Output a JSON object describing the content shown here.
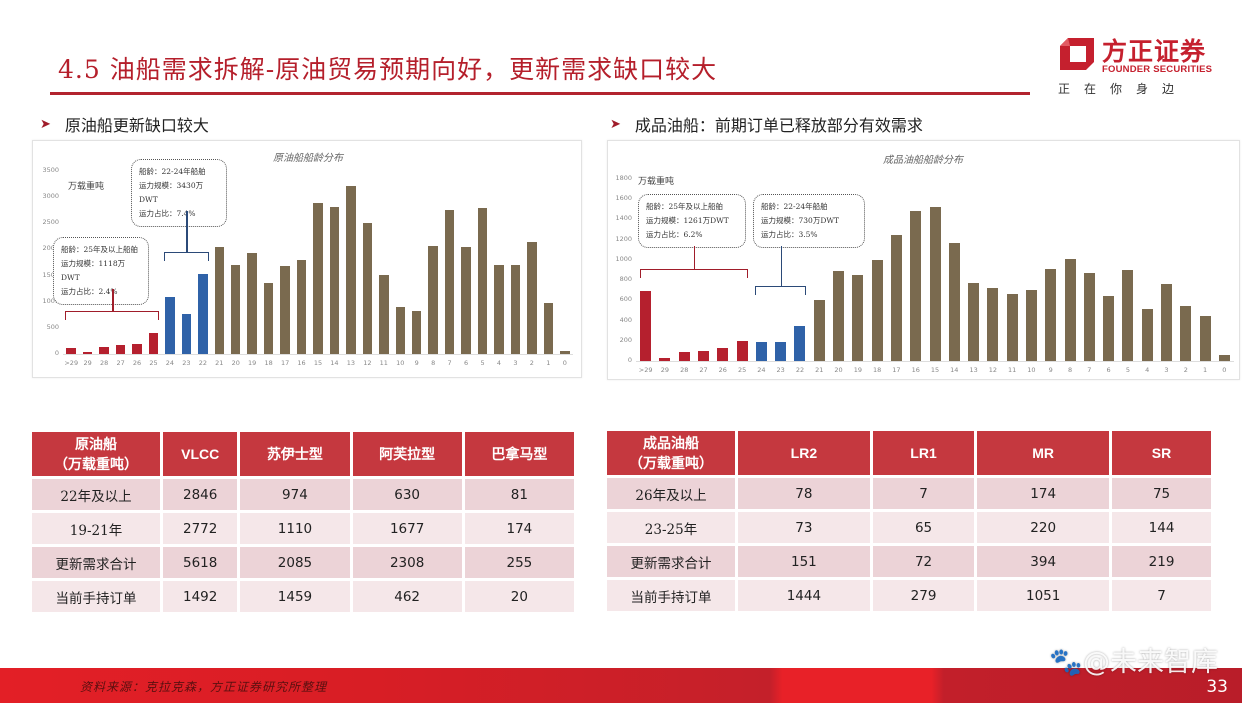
{
  "header": {
    "title": "4.5 油船需求拆解-原油贸易预期向好，更新需求缺口较大",
    "logo_cn": "方正证券",
    "logo_en": "FOUNDER SECURITIES",
    "slogan": "正在你身边",
    "brand_color": "#c5202e"
  },
  "sections": {
    "left": {
      "bullet": "➤",
      "heading": "原油船更新缺口较大"
    },
    "right": {
      "bullet": "➤",
      "heading": "成品油船：前期订单已释放部分有效需求"
    }
  },
  "chart_data": [
    {
      "type": "bar",
      "title": "原油船船龄分布",
      "ylabel": "万载重吨",
      "xlabel": "",
      "ylim": [
        0,
        3500
      ],
      "yticks": [
        0,
        500,
        1000,
        1500,
        2000,
        2500,
        3000,
        3500
      ],
      "grid": false,
      "categories": [
        ">29",
        "29",
        "28",
        "27",
        "26",
        "25",
        "24",
        "23",
        "22",
        "21",
        "20",
        "19",
        "18",
        "17",
        "16",
        "15",
        "14",
        "13",
        "12",
        "11",
        "10",
        "9",
        "8",
        "7",
        "6",
        "5",
        "4",
        "3",
        "2",
        "1",
        "0"
      ],
      "values": [
        120,
        35,
        140,
        175,
        190,
        400,
        1090,
        770,
        1530,
        2050,
        1700,
        1940,
        1360,
        1680,
        1800,
        2890,
        2810,
        3210,
        2500,
        1510,
        900,
        820,
        2060,
        2750,
        2040,
        2800,
        1700,
        1700,
        2140,
        970,
        60
      ],
      "bar_colors": {
        "age_25_plus": "#b5202e",
        "age_22_24": "#2f62a8",
        "age_0_21": "#7a6a4f"
      },
      "annotations": [
        {
          "group": "age_25_plus",
          "lines": [
            "船龄：25年及以上船舶",
            "运力规模：1118万DWT",
            "运力占比：2.4%"
          ]
        },
        {
          "group": "age_22_24",
          "lines": [
            "船龄：22-24年船舶",
            "运力规模：3430万DWT",
            "运力占比：7.4%"
          ]
        }
      ]
    },
    {
      "type": "bar",
      "title": "成品油船船龄分布",
      "ylabel": "万载重吨",
      "xlabel": "",
      "ylim": [
        0,
        1800
      ],
      "yticks": [
        0,
        200,
        400,
        600,
        800,
        1000,
        1200,
        1400,
        1600,
        1800
      ],
      "grid": false,
      "categories": [
        ">29",
        "29",
        "28",
        "27",
        "26",
        "25",
        "24",
        "23",
        "22",
        "21",
        "20",
        "19",
        "18",
        "17",
        "16",
        "15",
        "14",
        "13",
        "12",
        "11",
        "10",
        "9",
        "8",
        "7",
        "6",
        "5",
        "4",
        "3",
        "2",
        "1",
        "0"
      ],
      "values": [
        690,
        30,
        90,
        95,
        130,
        195,
        185,
        185,
        350,
        600,
        890,
        850,
        1000,
        1250,
        1480,
        1520,
        1170,
        770,
        720,
        660,
        700,
        910,
        1010,
        870,
        640,
        900,
        510,
        760,
        540,
        450,
        60
      ],
      "bar_colors": {
        "age_25_plus": "#b5202e",
        "age_22_24": "#2f62a8",
        "age_0_21": "#7a6a4f"
      },
      "annotations": [
        {
          "group": "age_25_plus",
          "lines": [
            "船龄：25年及以上船舶",
            "运力规模：1261万DWT",
            "运力占比：6.2%"
          ]
        },
        {
          "group": "age_22_24",
          "lines": [
            "船龄：22-24年船舶",
            "运力规模：730万DWT",
            "运力占比：3.5%"
          ]
        }
      ]
    }
  ],
  "tables": {
    "crude": {
      "header": [
        "原油船\n（万载重吨）",
        "VLCC",
        "苏伊士型",
        "阿芙拉型",
        "巴拿马型"
      ],
      "rows": [
        [
          "22年及以上",
          "2846",
          "974",
          "630",
          "81"
        ],
        [
          "19-21年",
          "2772",
          "1110",
          "1677",
          "174"
        ],
        [
          "更新需求合计",
          "5618",
          "2085",
          "2308",
          "255"
        ],
        [
          "当前手持订单",
          "1492",
          "1459",
          "462",
          "20"
        ]
      ]
    },
    "product": {
      "header": [
        "成品油船\n（万载重吨）",
        "LR2",
        "LR1",
        "MR",
        "SR"
      ],
      "rows": [
        [
          "26年及以上",
          "78",
          "7",
          "174",
          "75"
        ],
        [
          "23-25年",
          "73",
          "65",
          "220",
          "144"
        ],
        [
          "更新需求合计",
          "151",
          "72",
          "394",
          "219"
        ],
        [
          "当前手持订单",
          "1444",
          "279",
          "1051",
          "7"
        ]
      ]
    }
  },
  "footer": {
    "source": "资料来源：克拉克森，方正证券研究所整理",
    "page": "33",
    "watermark": "@未来智库"
  }
}
